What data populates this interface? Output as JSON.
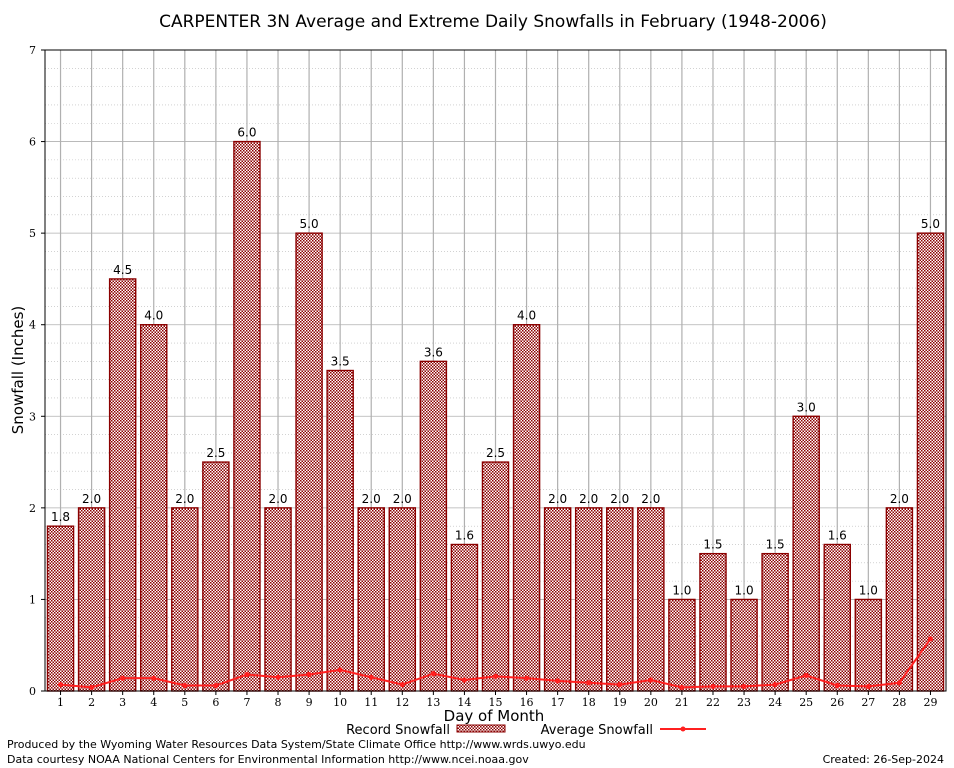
{
  "chart_data": {
    "type": "bar",
    "title": "CARPENTER 3N Average and Extreme Daily Snowfalls in February (1948-2006)",
    "xlabel": "Day of Month",
    "ylabel": "Snowfall (Inches)",
    "ylim": [
      0,
      7
    ],
    "yticks": [
      "0",
      "1",
      "2",
      "3",
      "4",
      "5",
      "6",
      "7"
    ],
    "categories": [
      "1",
      "2",
      "3",
      "4",
      "5",
      "6",
      "7",
      "8",
      "9",
      "10",
      "11",
      "12",
      "13",
      "14",
      "15",
      "16",
      "17",
      "18",
      "19",
      "20",
      "21",
      "22",
      "23",
      "24",
      "25",
      "26",
      "27",
      "28",
      "29"
    ],
    "grid": true,
    "legend_position": "bottom-center",
    "series": [
      {
        "name": "Record Snowfall",
        "type": "bar",
        "color": "#8b0000",
        "values": [
          1.8,
          2.0,
          4.5,
          4.0,
          2.0,
          2.5,
          6.0,
          2.0,
          5.0,
          3.5,
          2.0,
          2.0,
          3.6,
          1.6,
          2.5,
          4.0,
          2.0,
          2.0,
          2.0,
          2.0,
          1.0,
          1.5,
          1.0,
          1.5,
          3.0,
          1.6,
          1.0,
          2.0,
          5.0
        ],
        "labels": [
          "1.8",
          "2.0",
          "4.5",
          "4.0",
          "2.0",
          "2.5",
          "6.0",
          "2.0",
          "5.0",
          "3.5",
          "2.0",
          "2.0",
          "3.6",
          "1.6",
          "2.5",
          "4.0",
          "2.0",
          "2.0",
          "2.0",
          "2.0",
          "1.0",
          "1.5",
          "1.0",
          "1.5",
          "3.0",
          "1.6",
          "1.0",
          "2.0",
          "5.0"
        ]
      },
      {
        "name": "Average Snowfall",
        "type": "line",
        "color": "#ff2020",
        "values": [
          0.07,
          0.04,
          0.14,
          0.14,
          0.06,
          0.06,
          0.18,
          0.15,
          0.18,
          0.23,
          0.15,
          0.07,
          0.19,
          0.12,
          0.16,
          0.14,
          0.11,
          0.09,
          0.07,
          0.12,
          0.04,
          0.05,
          0.05,
          0.07,
          0.17,
          0.06,
          0.05,
          0.09,
          0.57
        ]
      }
    ]
  },
  "footer": {
    "line1": "Produced by the Wyoming Water Resources Data System/State Climate Office http://www.wrds.uwyo.edu",
    "line2": "Data courtesy NOAA National Centers for Environmental Information http://www.ncei.noaa.gov",
    "created": "Created:  26-Sep-2024"
  }
}
